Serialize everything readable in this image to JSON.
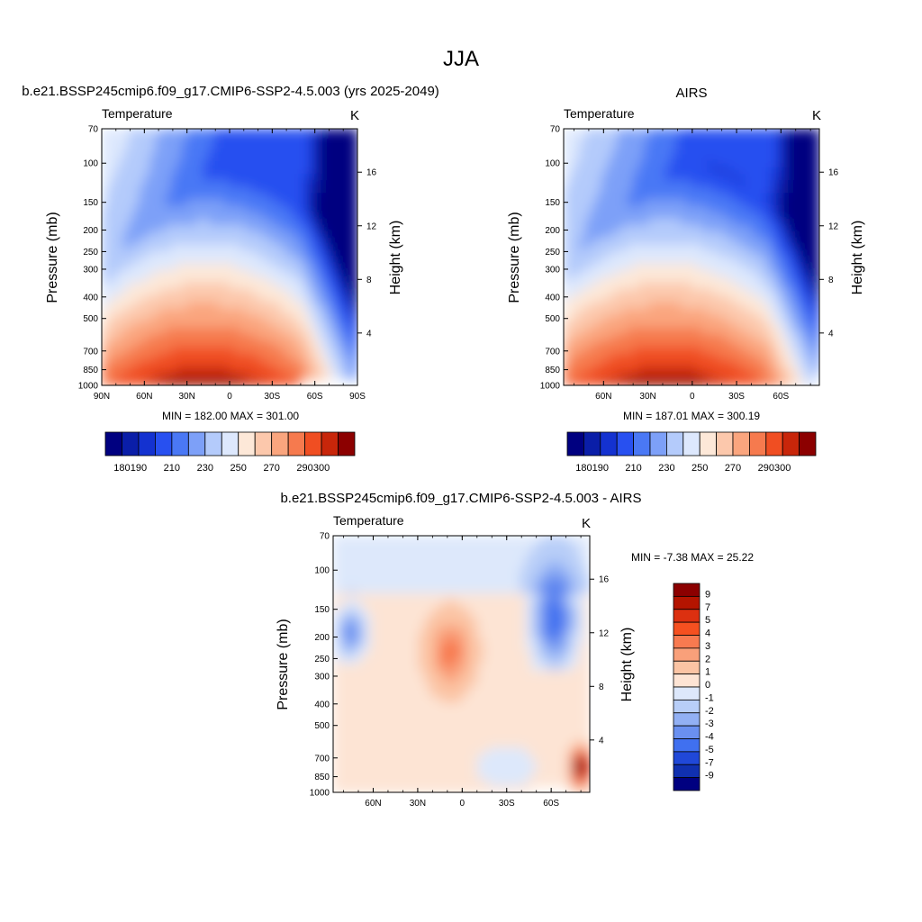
{
  "page_title": "JJA",
  "chart_data": [
    {
      "type": "heatmap",
      "panel": "model",
      "title": "b.e21.BSSP245cmip6.f09_g17.CMIP6-SSP2-4.5.003 (yrs 2025-2049)",
      "left_label": "Temperature",
      "units": "K",
      "ylabel": "Pressure (mb)",
      "ylabel_right": "Height (km)",
      "x_ticks": [
        "90N",
        "60N",
        "30N",
        "0",
        "30S",
        "60S",
        "90S"
      ],
      "y_ticks": [
        "70",
        "100",
        "150",
        "200",
        "250",
        "300",
        "400",
        "500",
        "700",
        "850",
        "1000"
      ],
      "y_ticks_right": [
        "16",
        "12",
        "8",
        "4"
      ],
      "stats": "MIN = 182.00  MAX = 301.00",
      "min": 182.0,
      "max": 301.0,
      "colorbar_levels": [
        180,
        190,
        210,
        230,
        250,
        270,
        290,
        300
      ],
      "colorbar_labels": [
        "180",
        "190",
        "210",
        "230",
        "250",
        "270",
        "290",
        "300"
      ],
      "palette": [
        "#000080",
        "#0a1ea8",
        "#1432d0",
        "#2850f0",
        "#4a78f5",
        "#7da0f8",
        "#b4cbfb",
        "#dde8fd",
        "#fde8d8",
        "#fcc8ac",
        "#faa57e",
        "#f67a4e",
        "#f04e22",
        "#c8260a",
        "#8c0000"
      ]
    },
    {
      "type": "heatmap",
      "panel": "obs",
      "title": "AIRS",
      "left_label": "Temperature",
      "units": "K",
      "ylabel": "Pressure (mb)",
      "ylabel_right": "Height (km)",
      "x_ticks": [
        "60N",
        "30N",
        "0",
        "30S",
        "60S"
      ],
      "y_ticks": [
        "70",
        "100",
        "150",
        "200",
        "250",
        "300",
        "400",
        "500",
        "700",
        "850",
        "1000"
      ],
      "y_ticks_right": [
        "16",
        "12",
        "8",
        "4"
      ],
      "stats": "MIN = 187.01  MAX = 300.19",
      "min": 187.01,
      "max": 300.19,
      "colorbar_levels": [
        180,
        190,
        210,
        230,
        250,
        270,
        290,
        300
      ],
      "colorbar_labels": [
        "180",
        "190",
        "210",
        "230",
        "250",
        "270",
        "290",
        "300"
      ],
      "palette": [
        "#000080",
        "#0a1ea8",
        "#1432d0",
        "#2850f0",
        "#4a78f5",
        "#7da0f8",
        "#b4cbfb",
        "#dde8fd",
        "#fde8d8",
        "#fcc8ac",
        "#faa57e",
        "#f67a4e",
        "#f04e22",
        "#c8260a",
        "#8c0000"
      ]
    },
    {
      "type": "heatmap",
      "panel": "difference",
      "title": "b.e21.BSSP245cmip6.f09_g17.CMIP6-SSP2-4.5.003 - AIRS",
      "left_label": "Temperature",
      "units": "K",
      "ylabel": "Pressure (mb)",
      "ylabel_right": "Height (km)",
      "x_ticks": [
        "60N",
        "30N",
        "0",
        "30S",
        "60S"
      ],
      "y_ticks": [
        "70",
        "100",
        "150",
        "200",
        "250",
        "300",
        "400",
        "500",
        "700",
        "850",
        "1000"
      ],
      "y_ticks_right": [
        "16",
        "12",
        "8",
        "4"
      ],
      "stats": "MIN =  -7.38  MAX =  25.22",
      "min": -7.38,
      "max": 25.22,
      "colorbar_labels": [
        "9",
        "7",
        "5",
        "4",
        "3",
        "2",
        "1",
        "0",
        "-1",
        "-2",
        "-3",
        "-4",
        "-5",
        "-7",
        "-9"
      ],
      "palette": [
        "#8c0000",
        "#b41400",
        "#dc3010",
        "#f55020",
        "#f87a50",
        "#f9a07a",
        "#fbc4a4",
        "#fde4d4",
        "#dde8fb",
        "#b8cef8",
        "#92b0f4",
        "#6a90f0",
        "#4070f0",
        "#2048d8",
        "#1030b0",
        "#000080"
      ]
    }
  ]
}
